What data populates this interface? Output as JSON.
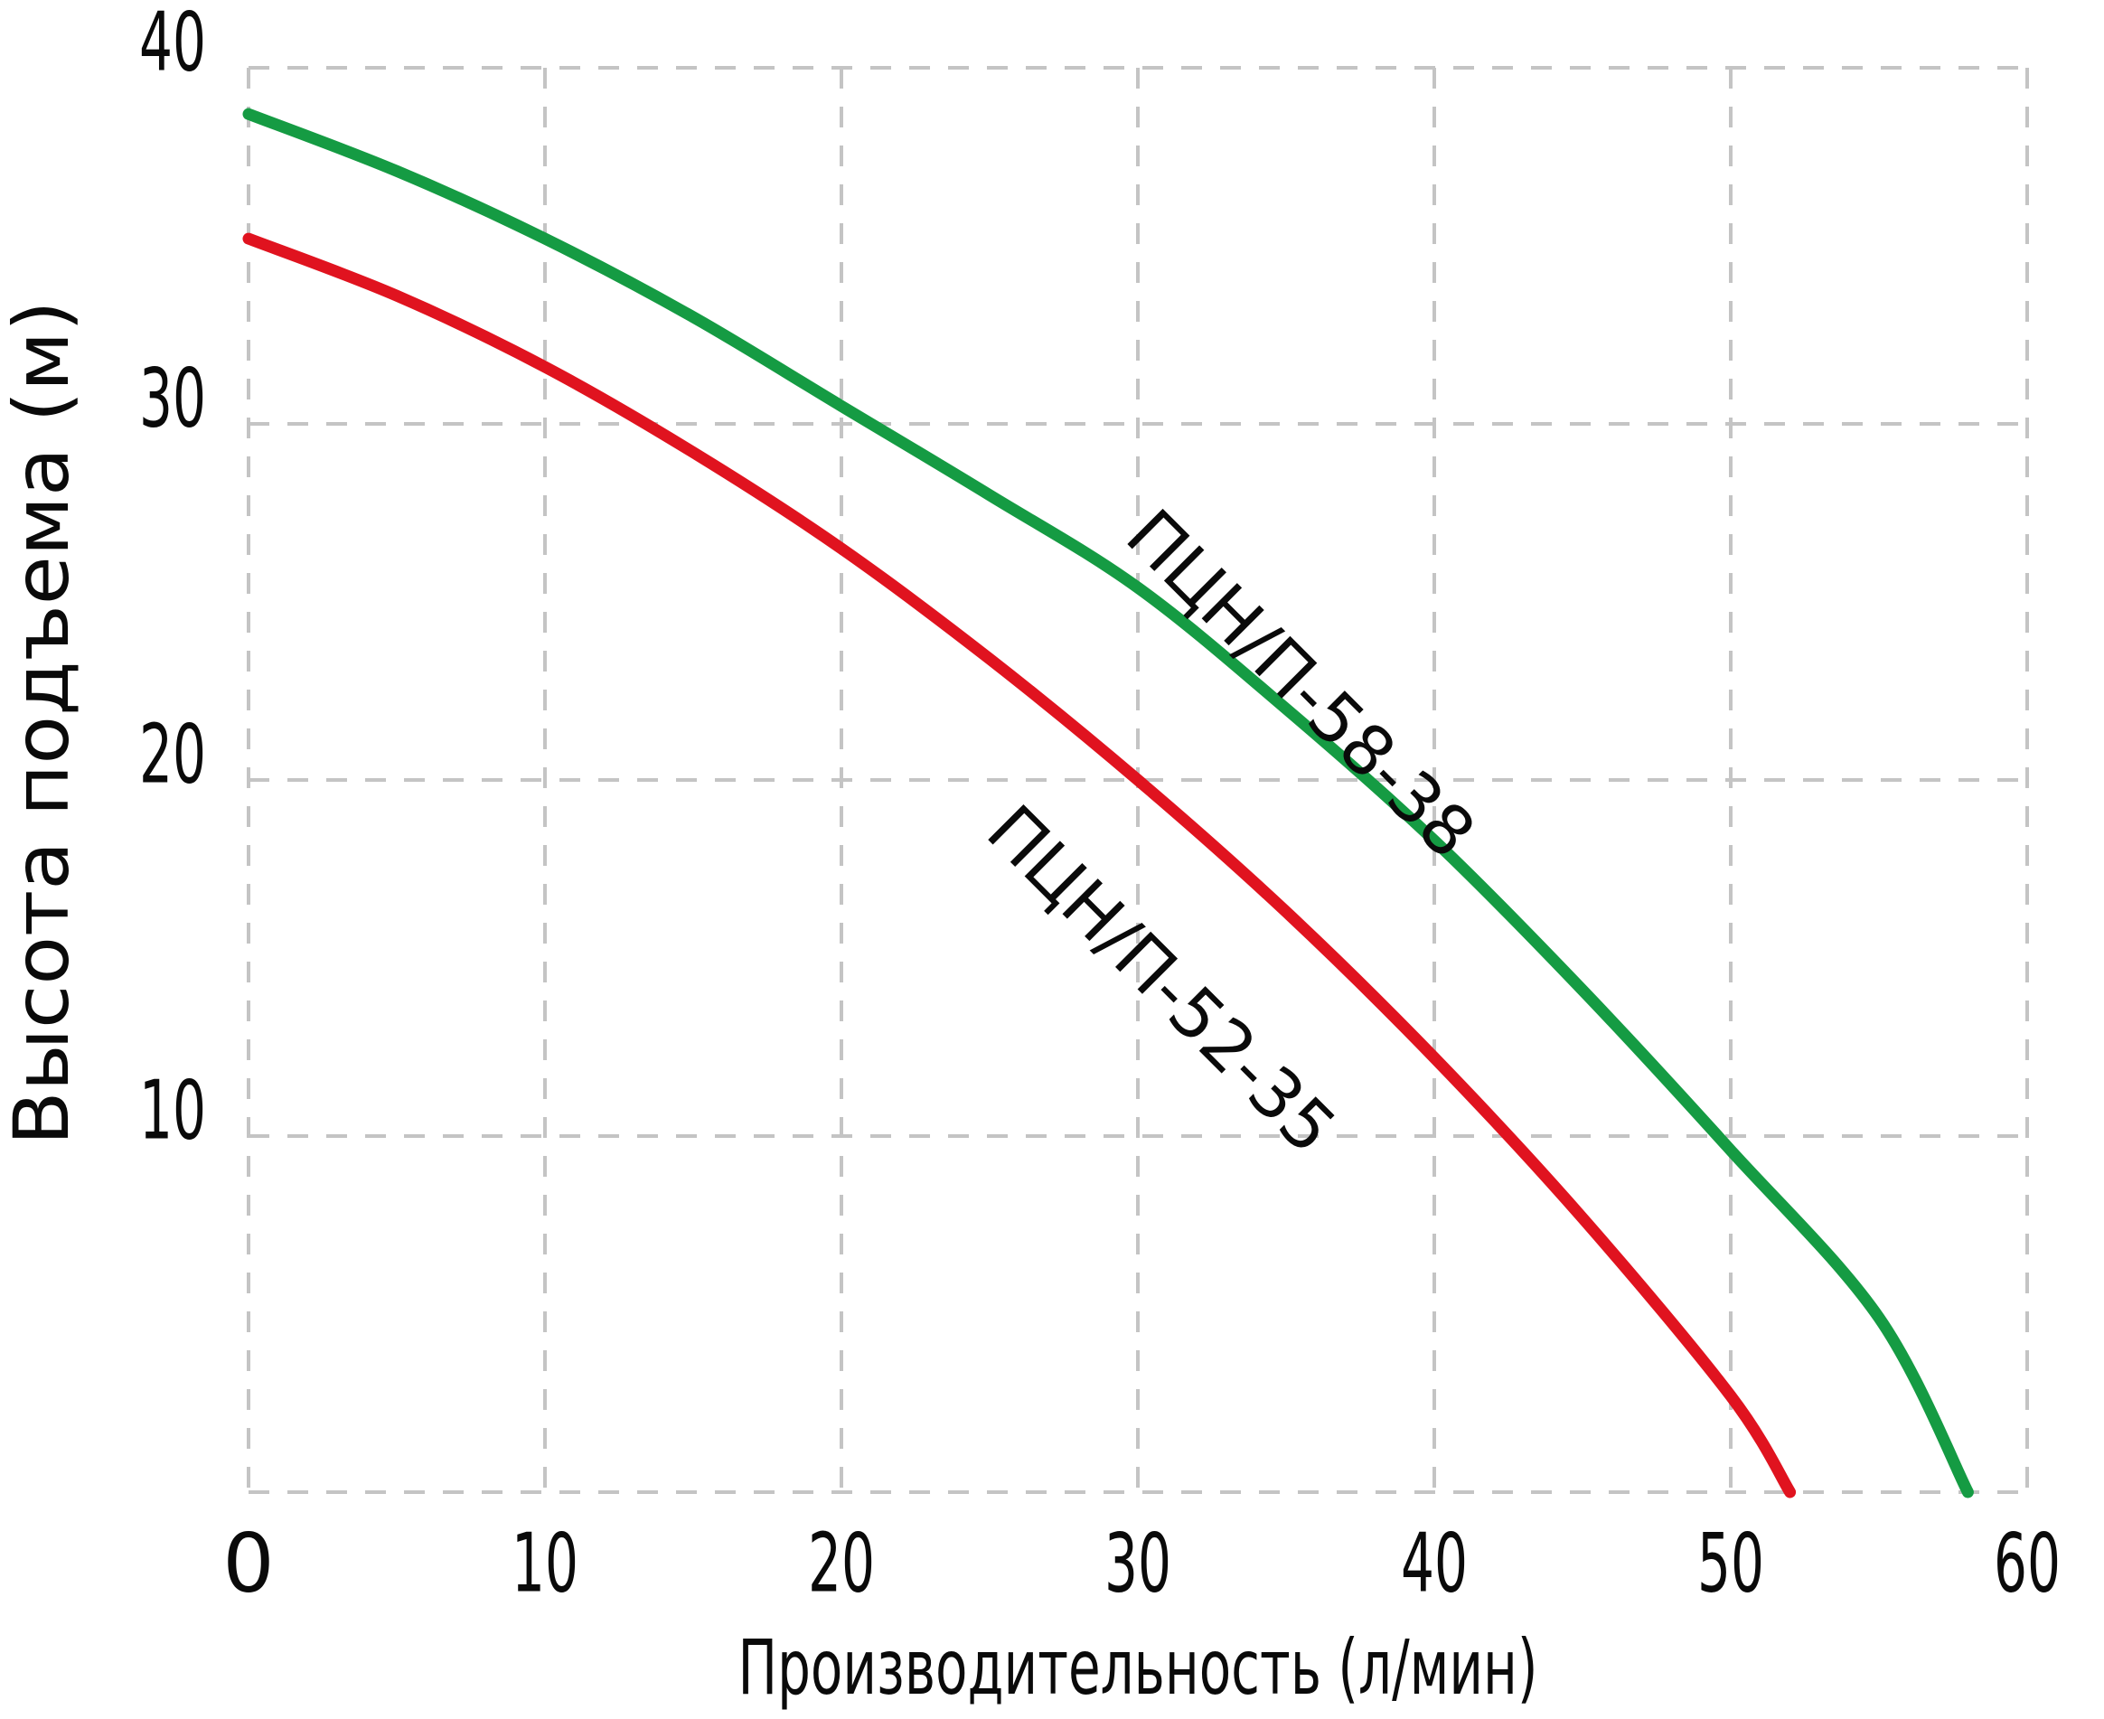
{
  "figure": {
    "background": "#ffffff",
    "text_color": "#0a0a0a",
    "grid_color": "#c4c4c4"
  },
  "chart_data": {
    "type": "line",
    "title": "",
    "xlabel": "Производительность (л/мин)",
    "ylabel": "Высота подъема (м)",
    "xlim": [
      0,
      60
    ],
    "ylim": [
      0,
      40
    ],
    "x_ticks": [
      0,
      10,
      20,
      30,
      40,
      50,
      60
    ],
    "y_ticks_labeled": [
      10,
      20,
      30,
      40
    ],
    "grid": "dashed",
    "legend_position": "inline-curve-labels",
    "series": [
      {
        "id": "58-38",
        "name": "ПЦН/П-58-38",
        "color": "#159b43",
        "head_at_zero_flow_m": 38.7,
        "max_flow_l_min": 58,
        "points": [
          [
            0,
            38.7
          ],
          [
            5,
            37.1
          ],
          [
            10,
            35.2
          ],
          [
            15,
            33.0
          ],
          [
            20,
            30.5
          ],
          [
            25,
            28.0
          ],
          [
            30,
            25.4
          ],
          [
            35,
            22.0
          ],
          [
            40,
            18.3
          ],
          [
            45,
            14.1
          ],
          [
            50,
            9.6
          ],
          [
            55,
            4.9
          ],
          [
            58,
            0
          ]
        ],
        "label": {
          "text": "ПЦН/П-58-38",
          "q": 35.5,
          "h": 22.7,
          "angle": 45
        }
      },
      {
        "id": "52-35",
        "name": "ПЦН/П-52-35",
        "color": "#e0131f",
        "head_at_zero_flow_m": 35.2,
        "max_flow_l_min": 52,
        "points": [
          [
            0,
            35.2
          ],
          [
            5,
            33.6
          ],
          [
            10,
            31.6
          ],
          [
            15,
            29.2
          ],
          [
            20,
            26.5
          ],
          [
            25,
            23.4
          ],
          [
            30,
            20.0
          ],
          [
            35,
            16.3
          ],
          [
            40,
            12.2
          ],
          [
            45,
            7.7
          ],
          [
            50,
            2.7
          ],
          [
            52,
            0
          ]
        ],
        "label": {
          "text": "ПЦН/П-52-35",
          "q": 30.8,
          "h": 14.4,
          "angle": 45
        }
      }
    ]
  }
}
